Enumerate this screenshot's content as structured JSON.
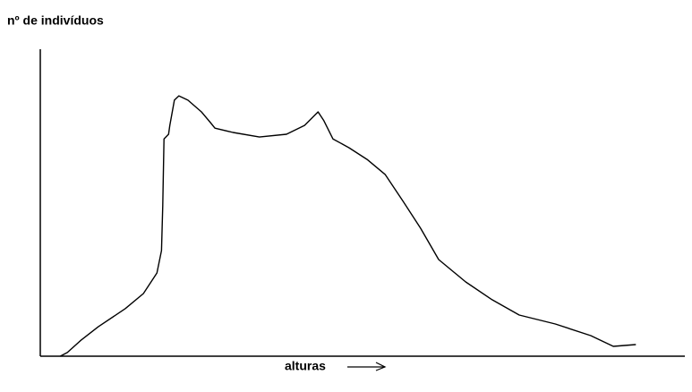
{
  "chart_data": {
    "type": "line",
    "y_label": "nº de indivíduos",
    "x_label": "alturas",
    "color": "#000000",
    "xlim": [
      0,
      100
    ],
    "ylim": [
      0,
      100
    ],
    "x": [
      3.1,
      4.2,
      6.3,
      9.0,
      13.2,
      16.0,
      18.1,
      18.8,
      19.0,
      19.2,
      19.9,
      20.1,
      20.8,
      21.5,
      22.9,
      25.0,
      26.4,
      27.1,
      29.9,
      34.0,
      38.2,
      41.0,
      43.1,
      44.0,
      45.4,
      47.9,
      50.7,
      53.5,
      56.3,
      59.0,
      61.8,
      66.0,
      70.1,
      74.3,
      79.9,
      85.4,
      88.9,
      92.4
    ],
    "values": [
      0,
      1.2,
      5.2,
      9.6,
      15.5,
      20.4,
      27.1,
      34.4,
      49.0,
      70.8,
      72.3,
      75.2,
      83.4,
      84.8,
      83.4,
      79.6,
      76.1,
      74.3,
      72.9,
      71.4,
      72.3,
      75.2,
      79.6,
      76.7,
      70.8,
      67.9,
      64.1,
      59.2,
      50.4,
      41.7,
      31.5,
      24.2,
      18.4,
      13.4,
      10.5,
      6.7,
      3.2,
      3.8
    ]
  }
}
